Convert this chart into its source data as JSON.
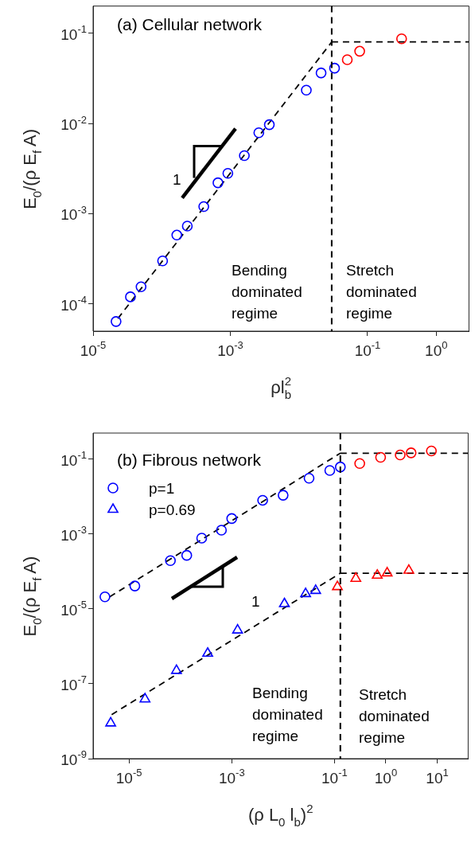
{
  "chart_data": [
    {
      "type": "scatter",
      "title": "(a) Cellular network",
      "xlabel": "ρl$_{b}$$^{2}$",
      "ylabel": "E$_{0}$/(ρ E$_{f}$ A)",
      "log": "xy",
      "xlim": [
        1e-05,
        3
      ],
      "ylim": [
        5e-05,
        0.2
      ],
      "xticks": [
        {
          "value": 1e-05,
          "label": "10$^{-5}$"
        },
        {
          "value": 0.001,
          "label": "10$^{-3}$"
        },
        {
          "value": 0.1,
          "label": "10$^{-1}$"
        },
        {
          "value": 1,
          "label": "10$^{0}$"
        }
      ],
      "yticks": [
        {
          "value": 0.0001,
          "label": "10$^{-4}$"
        },
        {
          "value": 0.001,
          "label": "10$^{-3}$"
        },
        {
          "value": 0.01,
          "label": "10$^{-2}$"
        },
        {
          "value": 0.1,
          "label": "10$^{-1}$"
        }
      ],
      "annotations": [
        "Bending dominated regime",
        "Stretch dominated regime",
        "1"
      ],
      "ref_lines": [
        {
          "axis": "x",
          "value": 0.03,
          "color": "#000000",
          "line_style": "dashed"
        }
      ],
      "series": [
        {
          "type": "scatter",
          "marker": "circle",
          "x": [
            2.16e-05,
            3.5e-05,
            5e-05,
            0.000103,
            0.000166,
            0.000236,
            0.00041,
            0.00066,
            0.00092,
            0.0016,
            0.0026,
            0.0037,
            0.0128,
            0.021,
            0.033,
            0.0506,
            0.0767,
            0.313
          ],
          "values": [
            6.4e-05,
            0.00012,
            0.000155,
            0.0003,
            0.00058,
            0.00073,
            0.0012,
            0.0022,
            0.0028,
            0.0044,
            0.0079,
            0.0097,
            0.0234,
            0.0363,
            0.041,
            0.0509,
            0.0632,
            0.0867
          ],
          "colors": [
            "#0000ff",
            "#0000ff",
            "#0000ff",
            "#0000ff",
            "#0000ff",
            "#0000ff",
            "#0000ff",
            "#0000ff",
            "#0000ff",
            "#0000ff",
            "#0000ff",
            "#0000ff",
            "#0000ff",
            "#0000ff",
            "#0000ff",
            "#ff0000",
            "#ff0000",
            "#ff0000"
          ]
        },
        {
          "type": "line",
          "marker": "none",
          "line_style": "dashed",
          "color": "#000000",
          "x": [
            2.3e-05,
            0.03
          ],
          "values": [
            6.9e-05,
            0.08
          ]
        },
        {
          "type": "line",
          "marker": "none",
          "line_style": "dashed",
          "color": "#000000",
          "x": [
            0.03,
            3
          ],
          "values": [
            0.08,
            0.08
          ]
        }
      ]
    },
    {
      "type": "scatter",
      "title": "(b) Fibrous network",
      "xlabel": "(ρ L$_{0}$ l$_{b}$)$^{2}$",
      "ylabel": "E$_{0}$/(ρ E$_{f}$ A)",
      "log": "xy",
      "legend": "top left",
      "xlim": [
        2e-06,
        40
      ],
      "ylim": [
        1e-09,
        0.5
      ],
      "xticks": [
        {
          "value": 1e-05,
          "label": "10$^{-5}$"
        },
        {
          "value": 0.001,
          "label": "10$^{-3}$"
        },
        {
          "value": 0.1,
          "label": "10$^{-1}$"
        },
        {
          "value": 1,
          "label": "10$^{0}$"
        },
        {
          "value": 10,
          "label": "10$^{1}$"
        }
      ],
      "yticks": [
        {
          "value": 1e-09,
          "label": "10$^{-9}$"
        },
        {
          "value": 1e-07,
          "label": "10$^{-7}$"
        },
        {
          "value": 1e-05,
          "label": "10$^{-5}$"
        },
        {
          "value": 0.001,
          "label": "10$^{-3}$"
        },
        {
          "value": 0.1,
          "label": "10$^{-1}$"
        }
      ],
      "annotations": [
        "Bending dominated regime",
        "Stretch dominated regime",
        "1"
      ],
      "ref_lines": [
        {
          "axis": "x",
          "value": 0.13,
          "color": "#000000",
          "line_style": "dashed"
        }
      ],
      "series": [
        {
          "type": "scatter",
          "name": "p=1",
          "marker": "circle",
          "x": [
            3.4e-06,
            1.3e-05,
            6.4e-05,
            0.000133,
            0.00026,
            0.00063,
            0.001,
            0.004,
            0.01,
            0.032,
            0.081,
            0.13,
            0.31,
            0.79,
            1.9,
            3.1,
            7.7
          ],
          "values": [
            2.1e-05,
            4.1e-05,
            0.000195,
            0.00027,
            0.00078,
            0.00127,
            0.0026,
            0.008,
            0.0109,
            0.031,
            0.05,
            0.062,
            0.077,
            0.112,
            0.13,
            0.148,
            0.166
          ],
          "colors": [
            "#0000ff",
            "#0000ff",
            "#0000ff",
            "#0000ff",
            "#0000ff",
            "#0000ff",
            "#0000ff",
            "#0000ff",
            "#0000ff",
            "#0000ff",
            "#0000ff",
            "#0000ff",
            "#ff0000",
            "#ff0000",
            "#ff0000",
            "#ff0000",
            "#ff0000"
          ]
        },
        {
          "type": "scatter",
          "name": "p=0.69",
          "marker": "triangle",
          "x": [
            4.4e-06,
            2.05e-05,
            8.4e-05,
            0.00034,
            0.0013,
            0.0106,
            0.0274,
            0.043,
            0.114,
            0.26,
            0.68,
            1.06,
            2.8
          ],
          "values": [
            8.9e-09,
            3.9e-08,
            2.25e-07,
            6.5e-07,
            2.7e-06,
            1.37e-05,
            2.54e-05,
            3.1e-05,
            3.9e-05,
            6.5e-05,
            7.9e-05,
            9.1e-05,
            0.000107
          ],
          "colors": [
            "#0000ff",
            "#0000ff",
            "#0000ff",
            "#0000ff",
            "#0000ff",
            "#0000ff",
            "#0000ff",
            "#0000ff",
            "#ff0000",
            "#ff0000",
            "#ff0000",
            "#ff0000",
            "#ff0000"
          ]
        },
        {
          "type": "line",
          "marker": "none",
          "line_style": "dashed",
          "color": "#000000",
          "x": [
            4.2e-06,
            0.13
          ],
          "values": [
            2.1e-05,
            0.145
          ]
        },
        {
          "type": "line",
          "marker": "none",
          "line_style": "dashed",
          "color": "#000000",
          "x": [
            0.13,
            40
          ],
          "values": [
            0.145,
            0.145
          ]
        },
        {
          "type": "line",
          "marker": "none",
          "line_style": "dashed",
          "color": "#000000",
          "x": [
            4.6e-06,
            0.13
          ],
          "values": [
            1.5e-08,
            9e-05
          ]
        },
        {
          "type": "line",
          "marker": "none",
          "line_style": "dashed",
          "color": "#000000",
          "x": [
            0.13,
            40
          ],
          "values": [
            9e-05,
            9e-05
          ]
        }
      ]
    }
  ]
}
